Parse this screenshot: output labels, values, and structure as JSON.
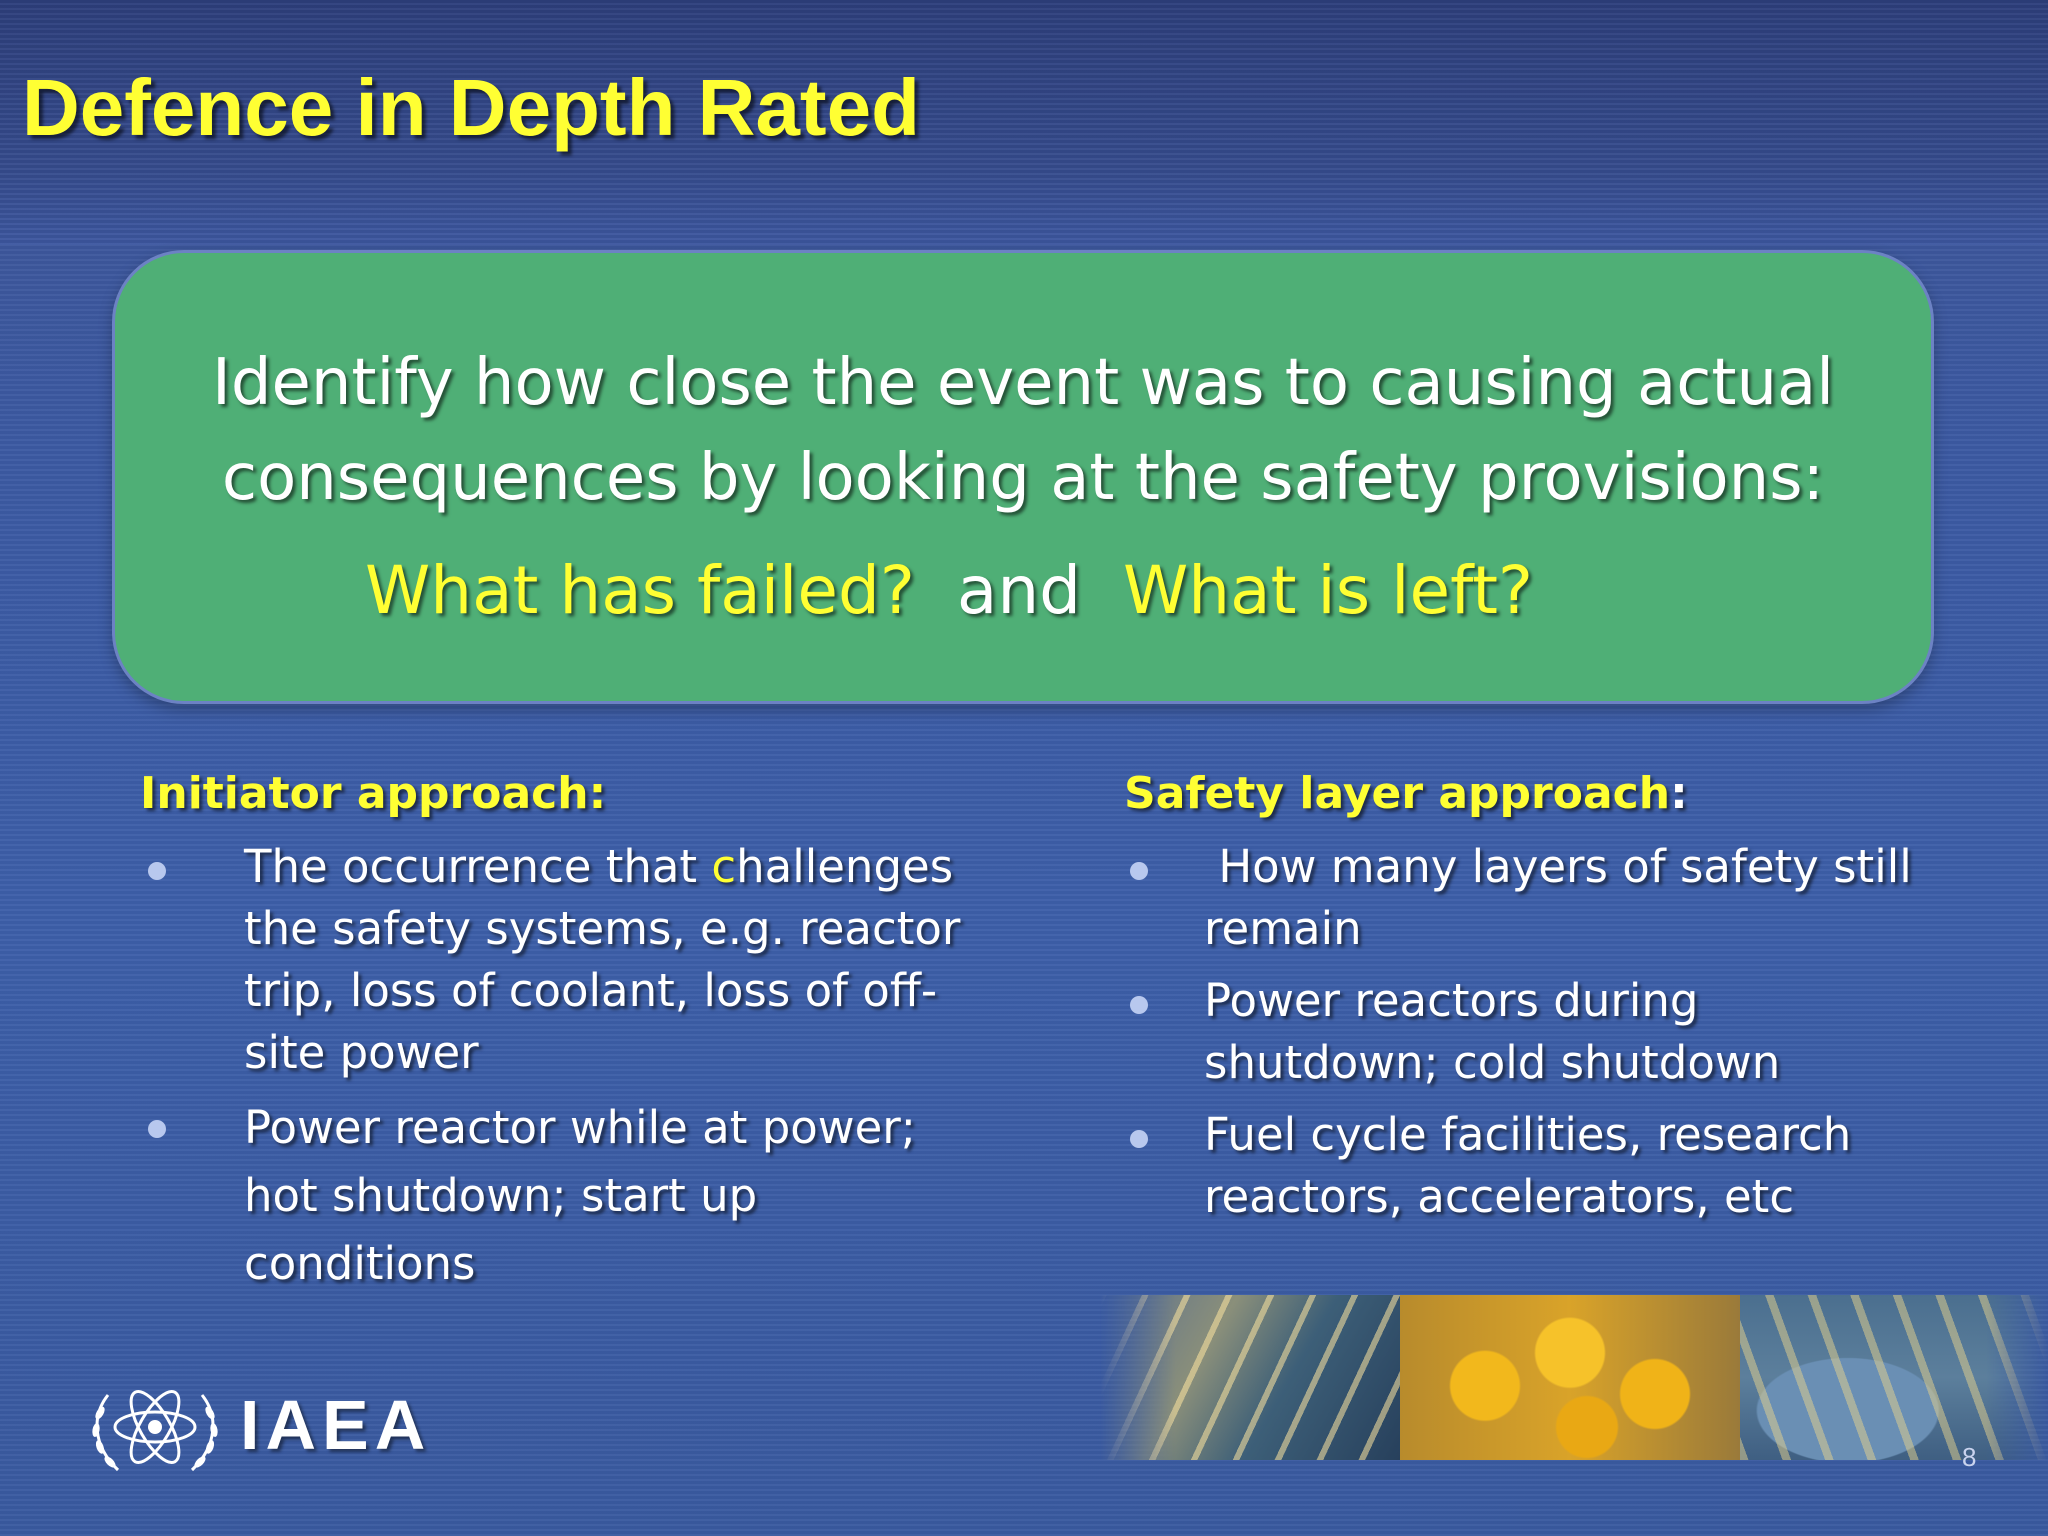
{
  "slide": {
    "title": "Defence in Depth Rated",
    "page_number": "8"
  },
  "callout": {
    "line1": "Identify how close the event was to causing actual",
    "line2": "consequences by looking at the safety provisions:",
    "question1": "What has failed?",
    "connector": "and",
    "question2": "What is left?"
  },
  "left_column": {
    "heading": "Initiator approach:",
    "bullets": [
      {
        "pre": "The occurrence that ",
        "highlight": "c",
        "post": "hallenges the safety systems, e.g. reactor trip, loss of coolant, loss of off-site power"
      },
      {
        "text": "Power reactor while at power; hot shutdown; start up conditions"
      }
    ]
  },
  "right_column": {
    "heading": "Safety layer approach",
    "heading_colon": ":",
    "bullets": [
      " How many layers of safety still remain",
      "Power reactors during shutdown; cold shutdown",
      "Fuel cycle facilities, research reactors, accelerators, etc"
    ]
  },
  "logo": {
    "text": "IAEA",
    "icon": "atom-olive-wreath-icon"
  },
  "colors": {
    "background": "#3c5aa3",
    "header": "#2d3f7c",
    "callout": "#4faf76",
    "accent_yellow": "#ffff33",
    "text": "#ffffff"
  }
}
